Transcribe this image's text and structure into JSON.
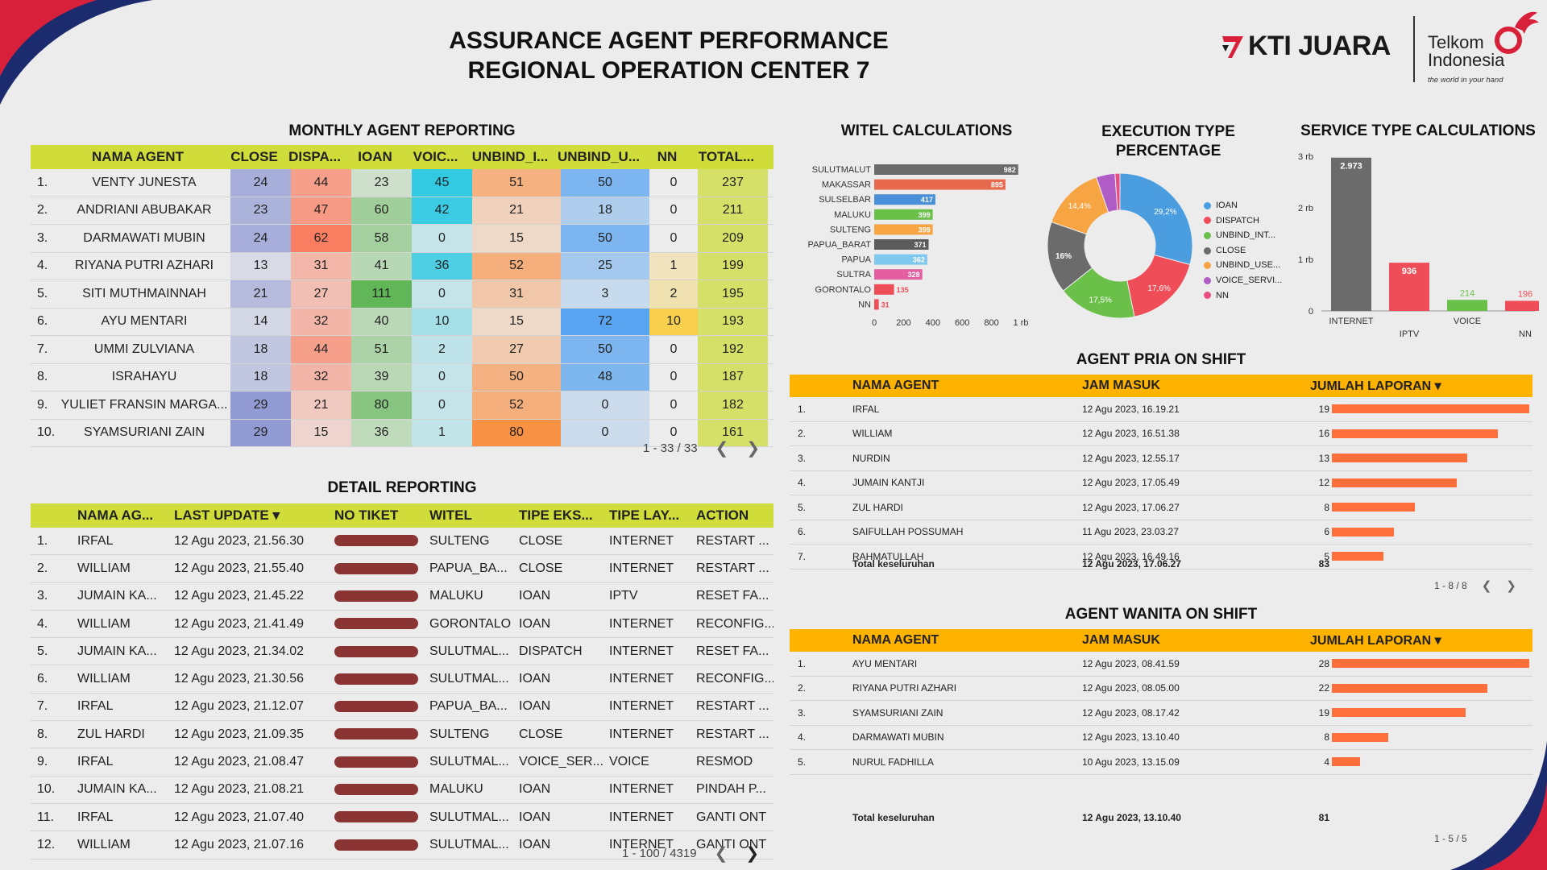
{
  "header": {
    "title_line1": "ASSURANCE AGENT PERFORMANCE",
    "title_line2": "REGIONAL OPERATION CENTER 7",
    "logo_kti": "KTI JUARA",
    "logo_telkom_1": "Telkom",
    "logo_telkom_2": "Indonesia",
    "logo_telkom_tagline": "the world in your hand"
  },
  "colors": {
    "accent_green": "#cfdc3a",
    "accent_orange": "#ffb300",
    "bar_orange": "#ff6f3c"
  },
  "monthly": {
    "title": "MONTHLY AGENT REPORTING",
    "columns": [
      "NAMA AGENT",
      "CLOSE",
      "DISPA...",
      "IOAN",
      "VOIC...",
      "UNBIND_I...",
      "UNBIND_U...",
      "NN",
      "TOTAL..."
    ],
    "rows": [
      [
        "1.",
        "VENTY JUNESTA",
        "24",
        "44",
        "23",
        "45",
        "51",
        "50",
        "0",
        "237"
      ],
      [
        "2.",
        "ANDRIANI ABUBAKAR",
        "23",
        "47",
        "60",
        "42",
        "21",
        "18",
        "0",
        "211"
      ],
      [
        "3.",
        "DARMAWATI MUBIN",
        "24",
        "62",
        "58",
        "0",
        "15",
        "50",
        "0",
        "209"
      ],
      [
        "4.",
        "RIYANA PUTRI AZHARI",
        "13",
        "31",
        "41",
        "36",
        "52",
        "25",
        "1",
        "199"
      ],
      [
        "5.",
        "SITI MUTHMAINNAH",
        "21",
        "27",
        "111",
        "0",
        "31",
        "3",
        "2",
        "195"
      ],
      [
        "6.",
        "AYU MENTARI",
        "14",
        "32",
        "40",
        "10",
        "15",
        "72",
        "10",
        "193"
      ],
      [
        "7.",
        "UMMI ZULVIANA",
        "18",
        "44",
        "51",
        "2",
        "27",
        "50",
        "0",
        "192"
      ],
      [
        "8.",
        "ISRAHAYU",
        "18",
        "32",
        "39",
        "0",
        "50",
        "48",
        "0",
        "187"
      ],
      [
        "9.",
        "YULIET FRANSIN MARGA...",
        "29",
        "21",
        "80",
        "0",
        "52",
        "0",
        "0",
        "182"
      ],
      [
        "10.",
        "SYAMSURIANI ZAIN",
        "29",
        "15",
        "36",
        "1",
        "80",
        "0",
        "0",
        "161"
      ]
    ],
    "pager": "1 - 33 / 33"
  },
  "detail": {
    "title": "DETAIL REPORTING",
    "columns": [
      "NAMA AG...",
      "LAST UPDATE ▾",
      "NO TIKET",
      "WITEL",
      "TIPE EKS...",
      "TIPE LAY...",
      "ACTION"
    ],
    "rows": [
      [
        "1.",
        "IRFAL",
        "12 Agu 2023, 21.56.30",
        "SULTENG",
        "CLOSE",
        "INTERNET",
        "RESTART ..."
      ],
      [
        "2.",
        "WILLIAM",
        "12 Agu 2023, 21.55.40",
        "PAPUA_BA...",
        "CLOSE",
        "INTERNET",
        "RESTART ..."
      ],
      [
        "3.",
        "JUMAIN KA...",
        "12 Agu 2023, 21.45.22",
        "MALUKU",
        "IOAN",
        "IPTV",
        "RESET FA..."
      ],
      [
        "4.",
        "WILLIAM",
        "12 Agu 2023, 21.41.49",
        "GORONTALO",
        "IOAN",
        "INTERNET",
        "RECONFIG..."
      ],
      [
        "5.",
        "JUMAIN KA...",
        "12 Agu 2023, 21.34.02",
        "SULUTMAL...",
        "DISPATCH",
        "INTERNET",
        "RESET FA..."
      ],
      [
        "6.",
        "WILLIAM",
        "12 Agu 2023, 21.30.56",
        "SULUTMAL...",
        "IOAN",
        "INTERNET",
        "RECONFIG..."
      ],
      [
        "7.",
        "IRFAL",
        "12 Agu 2023, 21.12.07",
        "PAPUA_BA...",
        "IOAN",
        "INTERNET",
        "RESTART ..."
      ],
      [
        "8.",
        "ZUL HARDI",
        "12 Agu 2023, 21.09.35",
        "SULTENG",
        "CLOSE",
        "INTERNET",
        "RESTART ..."
      ],
      [
        "9.",
        "IRFAL",
        "12 Agu 2023, 21.08.47",
        "SULUTMAL...",
        "VOICE_SER...",
        "VOICE",
        "RESMOD"
      ],
      [
        "10.",
        "JUMAIN KA...",
        "12 Agu 2023, 21.08.21",
        "MALUKU",
        "IOAN",
        "INTERNET",
        "PINDAH P..."
      ],
      [
        "11.",
        "IRFAL",
        "12 Agu 2023, 21.07.40",
        "SULUTMAL...",
        "IOAN",
        "INTERNET",
        "GANTI ONT"
      ],
      [
        "12.",
        "WILLIAM",
        "12 Agu 2023, 21.07.16",
        "SULUTMAL...",
        "IOAN",
        "INTERNET",
        "GANTI ONT"
      ]
    ],
    "pager": "1 - 100 / 4319"
  },
  "pria": {
    "title": "AGENT PRIA ON SHIFT",
    "columns": [
      "NAMA AGENT",
      "JAM MASUK",
      "JUMLAH LAPORAN ▾"
    ],
    "rows": [
      [
        "1.",
        "IRFAL",
        "12 Agu 2023, 16.19.21",
        19
      ],
      [
        "2.",
        "WILLIAM",
        "12 Agu 2023, 16.51.38",
        16
      ],
      [
        "3.",
        "NURDIN",
        "12 Agu 2023, 12.55.17",
        13
      ],
      [
        "4.",
        "JUMAIN KANTJI",
        "12 Agu 2023, 17.05.49",
        12
      ],
      [
        "5.",
        "ZUL HARDI",
        "12 Agu 2023, 17.06.27",
        8
      ],
      [
        "6.",
        "SAIFULLAH POSSUMAH",
        "11 Agu 2023, 23.03.27",
        6
      ],
      [
        "7.",
        "RAHMATULLAH",
        "12 Agu 2023, 16.49.16",
        5
      ]
    ],
    "total_label": "Total keseluruhan",
    "total_jam": "12 Agu 2023, 17.06.27",
    "total_count": "83",
    "pager": "1 - 8 / 8"
  },
  "wanita": {
    "title": "AGENT WANITA ON SHIFT",
    "columns": [
      "NAMA AGENT",
      "JAM MASUK",
      "JUMLAH LAPORAN ▾"
    ],
    "rows": [
      [
        "1.",
        "AYU MENTARI",
        "12 Agu 2023, 08.41.59",
        28
      ],
      [
        "2.",
        "RIYANA PUTRI AZHARI",
        "12 Agu 2023, 08.05.00",
        22
      ],
      [
        "3.",
        "SYAMSURIANI ZAIN",
        "12 Agu 2023, 08.17.42",
        19
      ],
      [
        "4.",
        "DARMAWATI MUBIN",
        "12 Agu 2023, 13.10.40",
        8
      ],
      [
        "5.",
        "NURUL FADHILLA",
        "10 Agu 2023, 13.15.09",
        4
      ]
    ],
    "total_label": "Total keseluruhan",
    "total_jam": "12 Agu 2023, 13.10.40",
    "total_count": "81",
    "pager": "1 - 5 / 5"
  },
  "chart_data": [
    {
      "type": "bar",
      "orientation": "horizontal",
      "title": "WITEL CALCULATIONS",
      "categories": [
        "SULUTMALUT",
        "MAKASSAR",
        "SULSELBAR",
        "MALUKU",
        "SULTENG",
        "PAPUA_BARAT",
        "PAPUA",
        "SULTRA",
        "GORONTALO",
        "NN"
      ],
      "values": [
        982,
        895,
        417,
        399,
        399,
        371,
        362,
        328,
        135,
        31
      ],
      "value_labels": [
        "982",
        "895",
        "417",
        "399",
        "399",
        "371",
        "362",
        "328",
        "135",
        "31"
      ],
      "colors": [
        "#6b6b6b",
        "#e86a4e",
        "#4a90d9",
        "#6bc04a",
        "#f7a443",
        "#5b5b5b",
        "#7fc8ee",
        "#e55fa0",
        "#ef4d58",
        "#ef4d58"
      ],
      "xticks": [
        "0",
        "200",
        "400",
        "600",
        "800",
        "1 rb"
      ],
      "xlim": [
        0,
        1000
      ]
    },
    {
      "type": "pie",
      "title": "EXECUTION TYPE PERCENTAGE",
      "labels": [
        "IOAN",
        "DISPATCH",
        "UNBIND_INT...",
        "CLOSE",
        "UNBIND_USE...",
        "VOICE_SERVI...",
        "NN"
      ],
      "values": [
        29.2,
        17.6,
        17.5,
        16,
        14.4,
        4.2,
        1.1
      ],
      "value_labels": [
        "29,2%",
        "17,6%",
        "17,5%",
        "16%",
        "14,4%",
        "",
        ""
      ],
      "colors": [
        "#4a9ee0",
        "#ef4d58",
        "#6bc04a",
        "#6b6b6b",
        "#f7a443",
        "#b05cc6",
        "#e84e82"
      ]
    },
    {
      "type": "bar",
      "title": "SERVICE TYPE CALCULATIONS",
      "categories": [
        "INTERNET",
        "IPTV",
        "VOICE",
        "NN"
      ],
      "values": [
        2973,
        936,
        214,
        196
      ],
      "value_labels": [
        "2.973",
        "936",
        "214",
        "196"
      ],
      "colors": [
        "#6b6b6b",
        "#ef4d58",
        "#6bc04a",
        "#ef4d58"
      ],
      "yticks": [
        "0",
        "1 rb",
        "2 rb",
        "3 rb"
      ],
      "ylim": [
        0,
        3000
      ]
    }
  ]
}
